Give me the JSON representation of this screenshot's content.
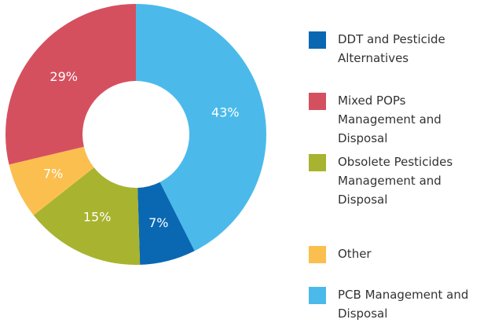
{
  "chart_data": {
    "type": "donut",
    "categories": [
      "DDT and Pesticide Alternatives",
      "Mixed POPs Management and Disposal",
      "Obsolete Pesticides Management and Disposal",
      "Other",
      "PCB Management and Disposal"
    ],
    "values": [
      7,
      29,
      15,
      7,
      43
    ],
    "value_labels": [
      "7%",
      "29%",
      "15%",
      "7%",
      "43%"
    ],
    "colors": [
      "#0a68b3",
      "#d5505f",
      "#a8b32f",
      "#fbbf50",
      "#4bbaea"
    ],
    "legend": "right"
  }
}
